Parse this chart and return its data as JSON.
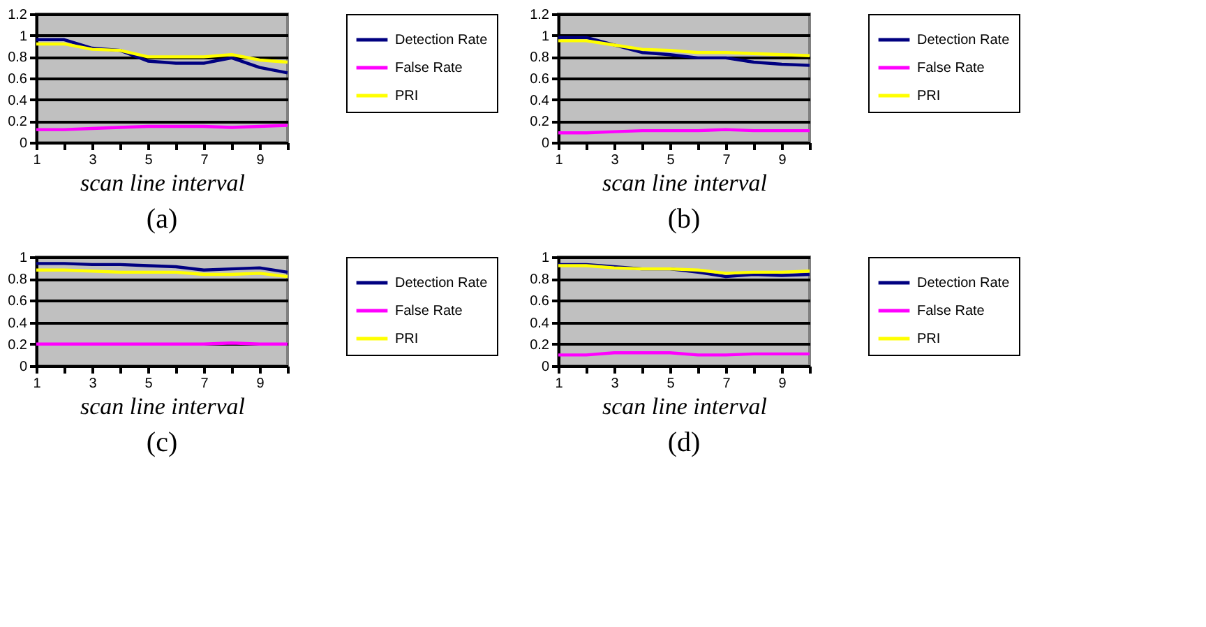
{
  "chart_data": [
    {
      "type": "line",
      "title": "(a)",
      "xlabel": "scan line interval",
      "x": [
        1,
        2,
        3,
        4,
        5,
        6,
        7,
        8,
        9,
        10
      ],
      "xlim": [
        1,
        10
      ],
      "xticks": [
        1,
        {
          "value": 2,
          "label": null
        },
        3,
        {
          "value": 4,
          "label": null
        },
        5,
        {
          "value": 6,
          "label": null
        },
        7,
        {
          "value": 8,
          "label": null
        },
        9,
        {
          "value": 10,
          "label": null
        }
      ],
      "ylim": [
        0,
        1.2
      ],
      "yticks": [
        0,
        0.2,
        0.4,
        0.6,
        0.8,
        1,
        1.2
      ],
      "grid": "y",
      "legend": "right",
      "marker": "none",
      "line_style": "solid",
      "series": [
        {
          "name": "Detection Rate",
          "color": "#000080",
          "values": [
            0.96,
            0.96,
            0.88,
            0.86,
            0.76,
            0.74,
            0.74,
            0.79,
            0.7,
            0.65
          ]
        },
        {
          "name": "False Rate",
          "color": "#ff00ff",
          "values": [
            0.12,
            0.12,
            0.13,
            0.14,
            0.15,
            0.15,
            0.15,
            0.14,
            0.15,
            0.16
          ]
        },
        {
          "name": "PRI",
          "color": "#ffff00",
          "values": [
            0.92,
            0.92,
            0.87,
            0.86,
            0.8,
            0.8,
            0.8,
            0.82,
            0.77,
            0.75
          ]
        }
      ]
    },
    {
      "type": "line",
      "title": "(b)",
      "xlabel": "scan line interval",
      "x": [
        1,
        2,
        3,
        4,
        5,
        6,
        7,
        8,
        9,
        10
      ],
      "xlim": [
        1,
        10
      ],
      "xticks": [
        1,
        {
          "value": 2,
          "label": null
        },
        3,
        {
          "value": 4,
          "label": null
        },
        5,
        {
          "value": 6,
          "label": null
        },
        7,
        {
          "value": 8,
          "label": null
        },
        9,
        {
          "value": 10,
          "label": null
        }
      ],
      "ylim": [
        0,
        1.2
      ],
      "yticks": [
        0,
        0.2,
        0.4,
        0.6,
        0.8,
        1,
        1.2
      ],
      "grid": "y",
      "legend": "right",
      "marker": "none",
      "line_style": "solid",
      "series": [
        {
          "name": "Detection Rate",
          "color": "#000080",
          "values": [
            0.98,
            0.98,
            0.91,
            0.84,
            0.82,
            0.79,
            0.79,
            0.75,
            0.73,
            0.72
          ]
        },
        {
          "name": "False Rate",
          "color": "#ff00ff",
          "values": [
            0.09,
            0.09,
            0.1,
            0.11,
            0.11,
            0.11,
            0.12,
            0.11,
            0.11,
            0.11
          ]
        },
        {
          "name": "PRI",
          "color": "#ffff00",
          "values": [
            0.95,
            0.95,
            0.91,
            0.87,
            0.86,
            0.84,
            0.84,
            0.83,
            0.82,
            0.81
          ]
        }
      ]
    },
    {
      "type": "line",
      "title": "(c)",
      "xlabel": "scan line interval",
      "x": [
        1,
        2,
        3,
        4,
        5,
        6,
        7,
        8,
        9,
        10
      ],
      "xlim": [
        1,
        10
      ],
      "xticks": [
        1,
        {
          "value": 2,
          "label": null
        },
        3,
        {
          "value": 4,
          "label": null
        },
        5,
        {
          "value": 6,
          "label": null
        },
        7,
        {
          "value": 8,
          "label": null
        },
        9,
        {
          "value": 10,
          "label": null
        }
      ],
      "ylim": [
        0,
        1
      ],
      "yticks": [
        0,
        0.2,
        0.4,
        0.6,
        0.8,
        1
      ],
      "grid": "y",
      "legend": "right",
      "marker": "none",
      "line_style": "solid",
      "series": [
        {
          "name": "Detection Rate",
          "color": "#000080",
          "values": [
            0.94,
            0.94,
            0.93,
            0.93,
            0.92,
            0.91,
            0.88,
            0.89,
            0.9,
            0.86
          ]
        },
        {
          "name": "False Rate",
          "color": "#ff00ff",
          "values": [
            0.2,
            0.2,
            0.2,
            0.2,
            0.2,
            0.2,
            0.2,
            0.21,
            0.2,
            0.2
          ]
        },
        {
          "name": "PRI",
          "color": "#ffff00",
          "values": [
            0.88,
            0.88,
            0.87,
            0.86,
            0.86,
            0.86,
            0.84,
            0.84,
            0.85,
            0.82
          ]
        }
      ]
    },
    {
      "type": "line",
      "title": "(d)",
      "xlabel": "scan line interval",
      "x": [
        1,
        2,
        3,
        4,
        5,
        6,
        7,
        8,
        9,
        10
      ],
      "xlim": [
        1,
        10
      ],
      "xticks": [
        1,
        {
          "value": 2,
          "label": null
        },
        3,
        {
          "value": 4,
          "label": null
        },
        5,
        {
          "value": 6,
          "label": null
        },
        7,
        {
          "value": 8,
          "label": null
        },
        9,
        {
          "value": 10,
          "label": null
        }
      ],
      "ylim": [
        0,
        1
      ],
      "yticks": [
        0,
        0.2,
        0.4,
        0.6,
        0.8,
        1
      ],
      "grid": "y",
      "legend": "right",
      "marker": "none",
      "line_style": "solid",
      "series": [
        {
          "name": "Detection Rate",
          "color": "#000080",
          "values": [
            0.93,
            0.93,
            0.91,
            0.89,
            0.89,
            0.86,
            0.82,
            0.84,
            0.83,
            0.84
          ]
        },
        {
          "name": "False Rate",
          "color": "#ff00ff",
          "values": [
            0.1,
            0.1,
            0.12,
            0.12,
            0.12,
            0.1,
            0.1,
            0.11,
            0.11,
            0.11
          ]
        },
        {
          "name": "PRI",
          "color": "#ffff00",
          "values": [
            0.92,
            0.92,
            0.9,
            0.89,
            0.89,
            0.88,
            0.85,
            0.86,
            0.86,
            0.87
          ]
        }
      ]
    }
  ]
}
